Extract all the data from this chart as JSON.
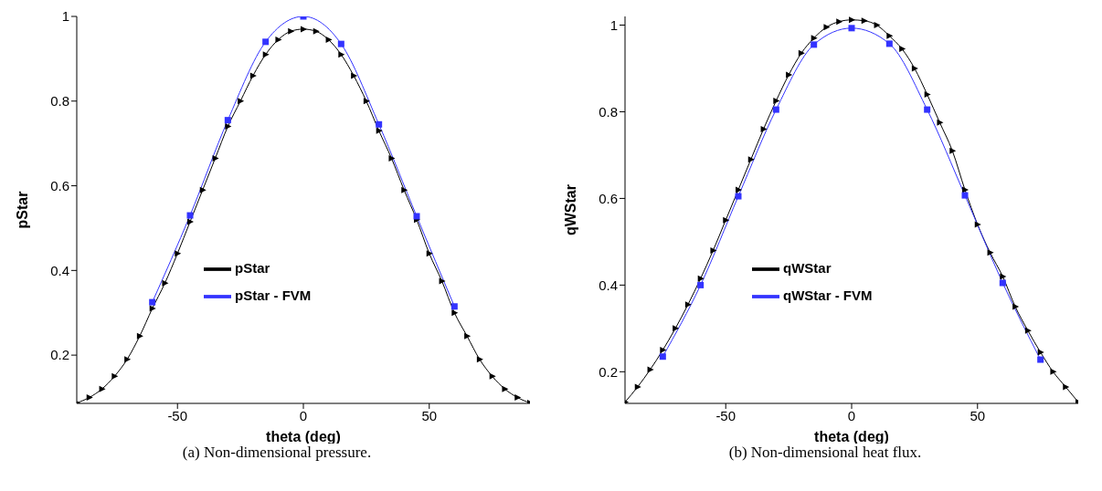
{
  "chart_data": [
    {
      "type": "line",
      "xlabel": "theta (deg)",
      "ylabel": "pStar",
      "annotations": [
        "(a) Non-dimensional pressure."
      ],
      "xlim": [
        -90,
        90
      ],
      "xticks": [
        -50,
        0,
        50
      ],
      "ylim": [
        0.086,
        1
      ],
      "yticks": [
        0.2,
        0.4,
        0.6,
        0.8,
        1
      ],
      "grid": false,
      "legend": "center",
      "line_style": "solid",
      "series": [
        {
          "name": "pStar",
          "color": "#000000",
          "marker": "triangle",
          "x": [
            -90,
            -85,
            -80,
            -75,
            -70,
            -65,
            -60,
            -55,
            -50,
            -45,
            -40,
            -35,
            -30,
            -25,
            -20,
            -15,
            -10,
            -5,
            0,
            5,
            10,
            15,
            20,
            25,
            30,
            35,
            40,
            45,
            50,
            55,
            60,
            65,
            70,
            75,
            80,
            85,
            90
          ],
          "values": [
            0.087,
            0.1,
            0.12,
            0.15,
            0.19,
            0.245,
            0.31,
            0.37,
            0.44,
            0.515,
            0.59,
            0.665,
            0.74,
            0.8,
            0.86,
            0.91,
            0.945,
            0.965,
            0.97,
            0.965,
            0.945,
            0.91,
            0.86,
            0.8,
            0.73,
            0.665,
            0.59,
            0.52,
            0.44,
            0.375,
            0.3,
            0.245,
            0.19,
            0.15,
            0.12,
            0.1,
            0.087
          ]
        },
        {
          "name": "pStar - FVM",
          "color": "#3333ff",
          "marker": "square",
          "x": [
            -60,
            -45,
            -30,
            -15,
            0,
            15,
            30,
            45,
            60
          ],
          "values": [
            0.325,
            0.53,
            0.755,
            0.94,
            1.0,
            0.935,
            0.745,
            0.528,
            0.315
          ]
        }
      ]
    },
    {
      "type": "line",
      "xlabel": "theta (deg)",
      "ylabel": "qWStar",
      "annotations": [
        "(b) Non-dimensional heat flux."
      ],
      "xlim": [
        -90,
        90
      ],
      "xticks": [
        -50,
        0,
        50
      ],
      "ylim": [
        0.127,
        1.02
      ],
      "yticks": [
        0.2,
        0.4,
        0.6,
        0.8,
        1
      ],
      "grid": false,
      "legend": "center",
      "line_style": "solid",
      "series": [
        {
          "name": "qWStar",
          "color": "#000000",
          "marker": "triangle",
          "x": [
            -90,
            -85,
            -80,
            -75,
            -70,
            -65,
            -60,
            -55,
            -50,
            -45,
            -40,
            -35,
            -30,
            -25,
            -20,
            -15,
            -10,
            -5,
            0,
            5,
            10,
            15,
            20,
            25,
            30,
            35,
            40,
            45,
            50,
            55,
            60,
            65,
            70,
            75,
            80,
            85,
            90
          ],
          "values": [
            0.13,
            0.165,
            0.205,
            0.25,
            0.3,
            0.355,
            0.415,
            0.48,
            0.55,
            0.62,
            0.69,
            0.76,
            0.825,
            0.885,
            0.935,
            0.97,
            0.995,
            1.008,
            1.012,
            1.01,
            1.0,
            0.975,
            0.945,
            0.9,
            0.84,
            0.775,
            0.71,
            0.62,
            0.54,
            0.475,
            0.42,
            0.35,
            0.295,
            0.245,
            0.2,
            0.165,
            0.13
          ]
        },
        {
          "name": "qWStar - FVM",
          "color": "#3333ff",
          "marker": "square",
          "x": [
            -75,
            -60,
            -45,
            -30,
            -15,
            0,
            15,
            30,
            45,
            60,
            75
          ],
          "values": [
            0.235,
            0.4,
            0.605,
            0.805,
            0.955,
            0.993,
            0.957,
            0.805,
            0.607,
            0.405,
            0.228
          ]
        }
      ]
    }
  ]
}
